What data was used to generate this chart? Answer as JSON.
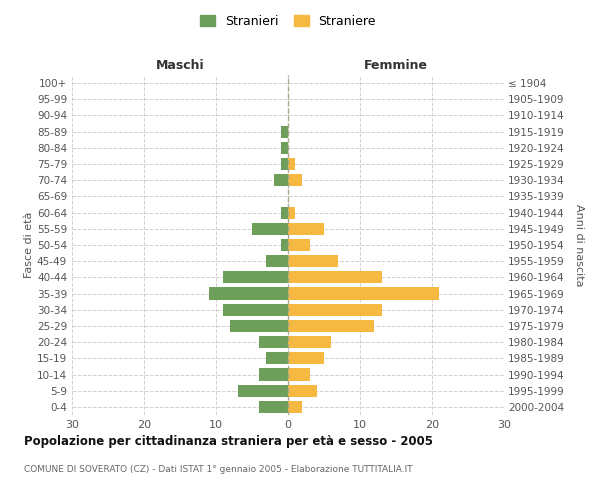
{
  "age_groups_bottom_to_top": [
    "0-4",
    "5-9",
    "10-14",
    "15-19",
    "20-24",
    "25-29",
    "30-34",
    "35-39",
    "40-44",
    "45-49",
    "50-54",
    "55-59",
    "60-64",
    "65-69",
    "70-74",
    "75-79",
    "80-84",
    "85-89",
    "90-94",
    "95-99",
    "100+"
  ],
  "birth_years_bottom_to_top": [
    "2000-2004",
    "1995-1999",
    "1990-1994",
    "1985-1989",
    "1980-1984",
    "1975-1979",
    "1970-1974",
    "1965-1969",
    "1960-1964",
    "1955-1959",
    "1950-1954",
    "1945-1949",
    "1940-1944",
    "1935-1939",
    "1930-1934",
    "1925-1929",
    "1920-1924",
    "1915-1919",
    "1910-1914",
    "1905-1909",
    "≤ 1904"
  ],
  "males_bottom_to_top": [
    4,
    7,
    4,
    3,
    4,
    8,
    9,
    11,
    9,
    3,
    1,
    5,
    1,
    0,
    2,
    1,
    1,
    1,
    0,
    0,
    0
  ],
  "females_bottom_to_top": [
    2,
    4,
    3,
    5,
    6,
    12,
    13,
    21,
    13,
    7,
    3,
    5,
    1,
    0,
    2,
    1,
    0,
    0,
    0,
    0,
    0
  ],
  "male_color": "#6d9e5a",
  "female_color": "#f5b942",
  "title": "Popolazione per cittadinanza straniera per età e sesso - 2005",
  "subtitle": "COMUNE DI SOVERATO (CZ) - Dati ISTAT 1° gennaio 2005 - Elaborazione TUTTITALIA.IT",
  "legend_male": "Stranieri",
  "legend_female": "Straniere",
  "label_left": "Maschi",
  "label_right": "Femmine",
  "ylabel_left": "Fasce di età",
  "ylabel_right": "Anni di nascita",
  "xlim": 30,
  "background_color": "#ffffff",
  "grid_color": "#d0d0d0"
}
